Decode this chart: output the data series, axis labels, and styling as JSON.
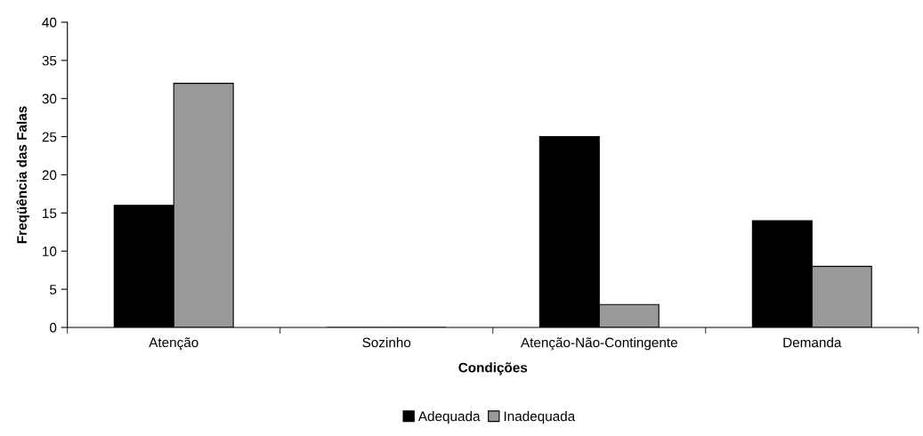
{
  "chart_data": {
    "type": "bar",
    "xlabel": "Condições",
    "ylabel": "Freqüência das Falas",
    "categories": [
      "Atenção",
      "Sozinho",
      "Atenção-Não-Contingente",
      "Demanda"
    ],
    "series": [
      {
        "name": "Adequada",
        "color": "#000000",
        "values": [
          16,
          0,
          25,
          14
        ]
      },
      {
        "name": "Inadequada",
        "color": "#999999",
        "values": [
          32,
          0,
          3,
          8
        ]
      }
    ],
    "ylim": [
      0,
      40
    ],
    "yticks": [
      0,
      5,
      10,
      15,
      20,
      25,
      30,
      35,
      40
    ],
    "grid": false,
    "legend": "bottom"
  }
}
